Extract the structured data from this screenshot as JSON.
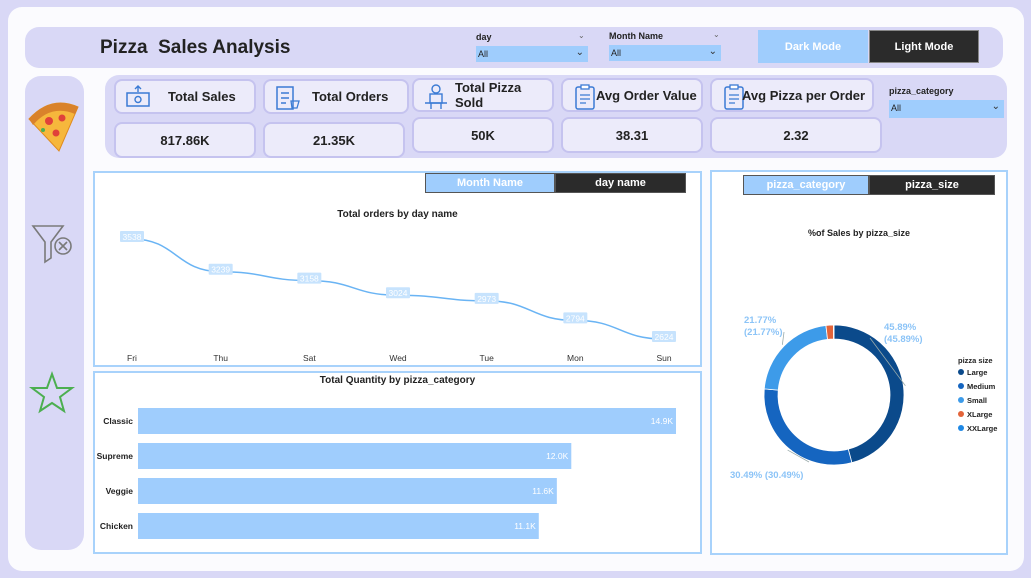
{
  "header": {
    "title": "Pizza  Sales Analysis",
    "slicers": [
      {
        "label": "day",
        "value": "All"
      },
      {
        "label": "Month Name",
        "value": "All"
      }
    ],
    "dark_mode_label": "Dark Mode",
    "light_mode_label": "Light Mode"
  },
  "sidebar": {
    "icons": [
      "pizza-icon",
      "clear-filter-icon",
      "star-icon"
    ]
  },
  "kpis": [
    {
      "label": "Total Sales",
      "value": "817.86K",
      "icon": "money-icon"
    },
    {
      "label": "Total Orders",
      "value": "21.35K",
      "icon": "order-list-icon"
    },
    {
      "label": "Total Pizza Sold",
      "value": "50K",
      "icon": "delivery-icon"
    },
    {
      "label": "Avg Order Value",
      "value": "38.31",
      "icon": "clipboard-icon"
    },
    {
      "label": "Avg Pizza per Order",
      "value": "2.32",
      "icon": "clipboard-icon"
    }
  ],
  "category_slicer": {
    "label": "pizza_category",
    "value": "All"
  },
  "line_panel": {
    "tabs": [
      "Month Name",
      "day name"
    ]
  },
  "donut_panel": {
    "tabs": [
      "pizza_category",
      "pizza_size"
    ]
  },
  "colors": {
    "accent": "#9fcdfd",
    "dark": "#2b2b2b",
    "line": "#6ab4f4",
    "large": "#0b4a8b",
    "medium": "#1565c0",
    "small": "#3d9be9",
    "xlarge": "#e3643a",
    "xxlarge": "#1e88e5"
  },
  "chart_data": [
    {
      "type": "line",
      "title": "Total orders by day name",
      "categories": [
        "Fri",
        "Thu",
        "Sat",
        "Wed",
        "Tue",
        "Mon",
        "Sun"
      ],
      "values": [
        3538,
        3239,
        3158,
        3024,
        2973,
        2794,
        2624
      ],
      "labels": [
        "3538",
        "3239",
        "3158",
        "3024",
        "2973",
        "2794",
        "2624"
      ]
    },
    {
      "type": "bar",
      "orientation": "horizontal",
      "title": "Total Quantity by pizza_category",
      "categories": [
        "Classic",
        "Supreme",
        "Veggie",
        "Chicken"
      ],
      "values": [
        14.9,
        12.0,
        11.6,
        11.1
      ],
      "labels": [
        "14.9K",
        "12.0K",
        "11.6K",
        "11.1K"
      ],
      "unit": "K"
    },
    {
      "type": "pie",
      "variant": "donut",
      "title": "%of Sales by pizza_size",
      "legend_title": "pizza size",
      "legend_position": "right",
      "slices": [
        {
          "name": "Large",
          "value": 45.89,
          "label": "45.89%\n(45.89%)"
        },
        {
          "name": "Medium",
          "value": 30.49,
          "label": "30.49% (30.49%)"
        },
        {
          "name": "Small",
          "value": 21.77,
          "label": "21.77%\n(21.77%)"
        },
        {
          "name": "XLarge",
          "value": 1.72,
          "label": ""
        },
        {
          "name": "XXLarge",
          "value": 0.12,
          "label": ""
        }
      ]
    }
  ]
}
